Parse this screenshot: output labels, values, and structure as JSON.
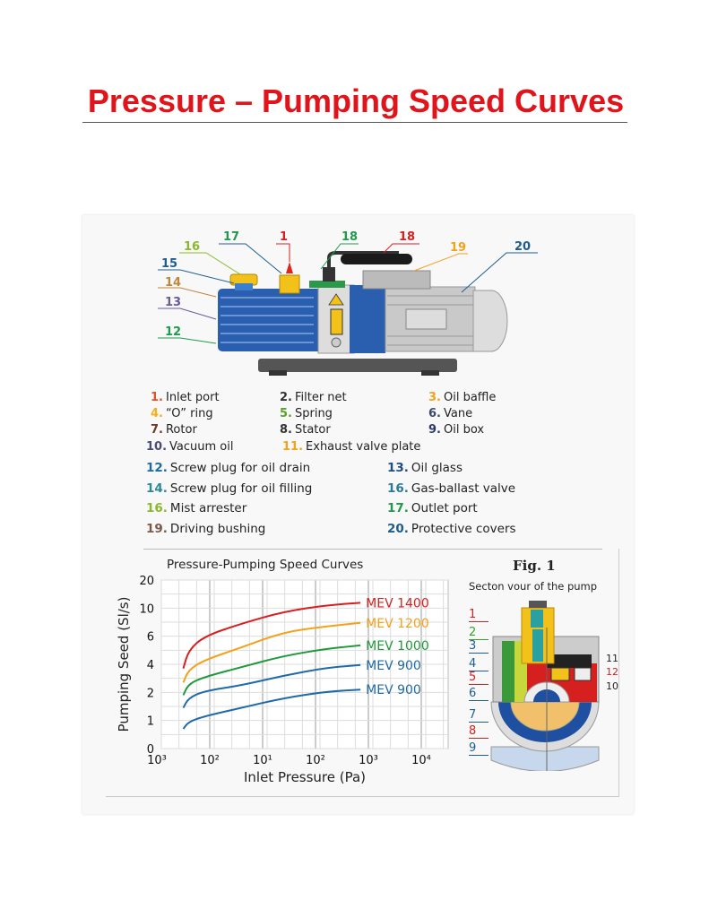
{
  "title": "Pressure – Pumping Speed Curves",
  "pump_callouts": [
    {
      "label": "16",
      "color": "#8bb82a"
    },
    {
      "label": "17",
      "color": "#1f9a4a"
    },
    {
      "label": "1",
      "color": "#d62020"
    },
    {
      "label": "18",
      "color": "#1f9a4a"
    },
    {
      "label": "18",
      "color": "#d62020"
    },
    {
      "label": "19",
      "color": "#f2a21b"
    },
    {
      "label": "20",
      "color": "#1f5d8f"
    },
    {
      "label": "15",
      "color": "#1f5d8f"
    },
    {
      "label": "14",
      "color": "#c0863a"
    },
    {
      "label": "13",
      "color": "#6a5a9a"
    },
    {
      "label": "12",
      "color": "#1f9a4a"
    }
  ],
  "legend": [
    {
      "num": "1.",
      "text": "Inlet port",
      "color": "#e0512a"
    },
    {
      "num": "2.",
      "text": "Filter net",
      "color": "#333333"
    },
    {
      "num": "3.",
      "text": "Oil baffle",
      "color": "#f2a21b"
    },
    {
      "num": "4.",
      "text": "“O” ring",
      "color": "#f2b01b"
    },
    {
      "num": "5.",
      "text": "Spring",
      "color": "#5aa02c"
    },
    {
      "num": "6.",
      "text": "Vane",
      "color": "#3a4a6a"
    },
    {
      "num": "7.",
      "text": "Rotor",
      "color": "#6a3a2a"
    },
    {
      "num": "8.",
      "text": "Stator",
      "color": "#333333"
    },
    {
      "num": "9.",
      "text": "Oil box",
      "color": "#2a3a6a"
    },
    {
      "num": "10.",
      "text": "Vacuum oil",
      "color": "#4a4a7a"
    },
    {
      "num": "11.",
      "text": "Exhaust valve plate",
      "color": "#f2a21b"
    },
    {
      "num": "12.",
      "text": "Screw plug for oil drain",
      "color": "#1f6aa0"
    },
    {
      "num": "13.",
      "text": "Oil glass",
      "color": "#1f4f80"
    },
    {
      "num": "14.",
      "text": "Screw plug for oil filling",
      "color": "#2a8a9a"
    },
    {
      "num": "16.",
      "text": "Gas-ballast valve",
      "color": "#2a7a9a"
    },
    {
      "num": "16.",
      "text": "Mist arrester",
      "color": "#8bb82a"
    },
    {
      "num": "17.",
      "text": "Outlet port",
      "color": "#1f9a4a"
    },
    {
      "num": "19.",
      "text": "Driving bushing",
      "color": "#7a5a4a"
    },
    {
      "num": "20.",
      "text": "Protective covers",
      "color": "#1f5d8f"
    }
  ],
  "chart_data": {
    "type": "line",
    "title": "Pressure-Pumping Speed Curves",
    "xlabel": "Inlet Pressure (Pa)",
    "ylabel": "Pumping Seed (Sl/s)",
    "x_scale": "log",
    "xticks": [
      "10³",
      "10²",
      "10¹",
      "10²",
      "10³",
      "10⁴"
    ],
    "yticks": [
      "20",
      "10",
      "6",
      "4",
      "2",
      "1",
      "0"
    ],
    "grid": true,
    "legend_placement": "inline-right",
    "series": [
      {
        "name": "MEV 1400",
        "color": "#d91e1e",
        "points": [
          [
            0.5,
            3.7
          ],
          [
            0.6,
            5.0
          ],
          [
            0.9,
            6.0
          ],
          [
            1.6,
            7.8
          ],
          [
            2.4,
            9.5
          ],
          [
            3.2,
            11.0
          ],
          [
            3.85,
            11.9
          ]
        ]
      },
      {
        "name": "MEV 1200",
        "color": "#f2a21b",
        "points": [
          [
            0.5,
            2.7
          ],
          [
            0.6,
            3.6
          ],
          [
            0.9,
            4.3
          ],
          [
            1.6,
            5.2
          ],
          [
            2.4,
            6.6
          ],
          [
            3.2,
            7.4
          ],
          [
            3.85,
            7.9
          ]
        ]
      },
      {
        "name": "MEV 1000",
        "color": "#1f9a3a",
        "points": [
          [
            0.5,
            1.9
          ],
          [
            0.6,
            2.6
          ],
          [
            0.9,
            3.1
          ],
          [
            1.6,
            3.8
          ],
          [
            2.4,
            4.6
          ],
          [
            3.2,
            5.1
          ],
          [
            3.85,
            5.35
          ]
        ]
      },
      {
        "name": "MEV 900",
        "color": "#1f6aa8",
        "points": [
          [
            0.5,
            1.45
          ],
          [
            0.6,
            1.8
          ],
          [
            0.9,
            2.1
          ],
          [
            1.6,
            2.5
          ],
          [
            2.4,
            3.2
          ],
          [
            3.2,
            3.75
          ],
          [
            3.85,
            3.95
          ]
        ]
      },
      {
        "name": "MEV 900",
        "color": "#1f6aa8",
        "points": [
          [
            0.5,
            0.7
          ],
          [
            0.6,
            0.95
          ],
          [
            0.9,
            1.15
          ],
          [
            1.6,
            1.45
          ],
          [
            2.4,
            1.8
          ],
          [
            3.2,
            2.05
          ],
          [
            3.85,
            2.2
          ]
        ]
      }
    ]
  },
  "fig": {
    "title": "Fig. 1",
    "subtitle": "Secton vour of the pump",
    "callouts_left": [
      {
        "label": "1",
        "color": "#d62020"
      },
      {
        "label": "2",
        "color": "#3aa02c"
      },
      {
        "label": "3",
        "color": "#1f5d8f"
      },
      {
        "label": "4",
        "color": "#1f5d8f"
      },
      {
        "label": "5",
        "color": "#d62020"
      },
      {
        "label": "6",
        "color": "#1f5d8f"
      },
      {
        "label": "7",
        "color": "#1f5d8f"
      },
      {
        "label": "8",
        "color": "#d62020"
      },
      {
        "label": "9",
        "color": "#1f5d8f"
      }
    ],
    "callouts_right": [
      {
        "label": "11",
        "color": "#222222"
      },
      {
        "label": "12",
        "color": "#d62020"
      },
      {
        "label": "10",
        "color": "#222222"
      }
    ]
  }
}
